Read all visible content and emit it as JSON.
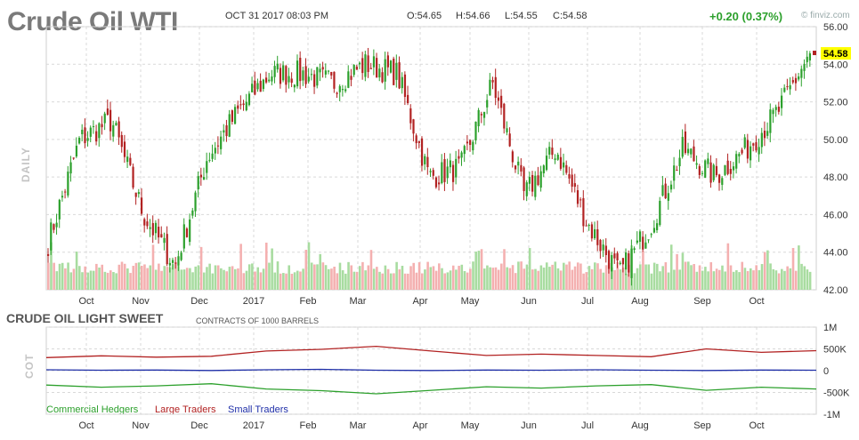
{
  "header": {
    "title": "Crude Oil WTI",
    "datetime": "OCT 31 2017 08:03 PM",
    "open": "O:54.65",
    "high": "H:54.66",
    "low": "L:54.55",
    "close": "C:54.58",
    "change": "+0.20 (0.37%)",
    "brand": "© finviz.com"
  },
  "panel_labels": {
    "daily": "DAILY",
    "cot": "COT",
    "cot_title": "CRUDE OIL LIGHT SWEET",
    "cot_subtitle": "CONTRACTS OF 1000 BARRELS"
  },
  "colors": {
    "up": "#2ca02c",
    "down": "#b22222",
    "volume_up": "#a8dca0",
    "volume_down": "#f4b0b0",
    "grid": "#d9d9d9",
    "last_price_bg": "#ffff00",
    "commercial": "#2ca02c",
    "large": "#b22222",
    "small": "#1f2fa8"
  },
  "chart_data": [
    {
      "type": "candlestick",
      "title": "Crude Oil WTI",
      "period": "daily",
      "x_labels": [
        "Oct",
        "Nov",
        "Dec",
        "2017",
        "Feb",
        "Mar",
        "Apr",
        "May",
        "Jun",
        "Jul",
        "Aug",
        "Sep",
        "Oct"
      ],
      "y_ticks": [
        "56.00",
        "54.00",
        "52.00",
        "50.00",
        "48.00",
        "46.00",
        "44.00",
        "42.00"
      ],
      "ylim": [
        42,
        56
      ],
      "last_price": "54.58",
      "grid": true,
      "approx_close_path": [
        {
          "month": "Oct",
          "close": 44.5
        },
        {
          "month": "Oct",
          "close": 50.0
        },
        {
          "month": "Oct",
          "close": 51.0
        },
        {
          "month": "Nov",
          "close": 46.0
        },
        {
          "month": "Nov",
          "close": 43.3
        },
        {
          "month": "Nov",
          "close": 49.0
        },
        {
          "month": "Dec",
          "close": 51.5
        },
        {
          "month": "Dec",
          "close": 53.5
        },
        {
          "month": "2017",
          "close": 53.5
        },
        {
          "month": "Feb",
          "close": 53.0
        },
        {
          "month": "Feb",
          "close": 54.0
        },
        {
          "month": "Mar",
          "close": 53.5
        },
        {
          "month": "Mar",
          "close": 48.0
        },
        {
          "month": "Apr",
          "close": 48.5
        },
        {
          "month": "Apr",
          "close": 53.0
        },
        {
          "month": "May",
          "close": 47.0
        },
        {
          "month": "May",
          "close": 49.5
        },
        {
          "month": "Jun",
          "close": 45.5
        },
        {
          "month": "Jun",
          "close": 42.8
        },
        {
          "month": "Jul",
          "close": 45.5
        },
        {
          "month": "Jul",
          "close": 49.5
        },
        {
          "month": "Aug",
          "close": 48.0
        },
        {
          "month": "Sep",
          "close": 49.5
        },
        {
          "month": "Oct",
          "close": 51.5
        },
        {
          "month": "Oct",
          "close": 54.58
        }
      ]
    },
    {
      "type": "line",
      "title": "CRUDE OIL LIGHT SWEET",
      "subtitle": "CONTRACTS OF 1000 BARRELS",
      "x_labels": [
        "Oct",
        "Nov",
        "Dec",
        "2017",
        "Feb",
        "Mar",
        "Apr",
        "May",
        "Jun",
        "Jul",
        "Aug",
        "Sep",
        "Oct"
      ],
      "y_ticks": [
        "1M",
        "500K",
        "0",
        "-500K",
        "-1M"
      ],
      "ylim": [
        -1000,
        1000
      ],
      "y_unit": "thousand contracts",
      "series": [
        {
          "name": "Commercial Hedgers",
          "values": [
            -330,
            -380,
            -350,
            -300,
            -420,
            -460,
            -530,
            -450,
            -370,
            -400,
            -350,
            -320,
            -450,
            -380,
            -420
          ]
        },
        {
          "name": "Large Traders",
          "values": [
            300,
            340,
            310,
            330,
            450,
            490,
            560,
            450,
            350,
            380,
            350,
            320,
            500,
            420,
            460
          ]
        },
        {
          "name": "Small Traders",
          "values": [
            20,
            10,
            15,
            5,
            20,
            30,
            10,
            5,
            15,
            10,
            20,
            10,
            5,
            15,
            10
          ]
        }
      ]
    }
  ]
}
